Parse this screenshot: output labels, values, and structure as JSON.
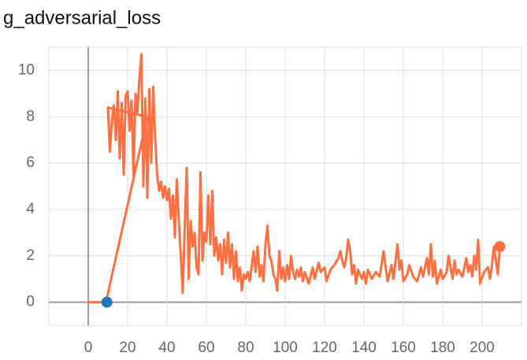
{
  "chart_data": {
    "type": "line",
    "title": "g_adversarial_loss",
    "xlim": [
      -20,
      220
    ],
    "xticks": [
      0,
      20,
      40,
      60,
      80,
      100,
      120,
      140,
      160,
      180,
      200
    ],
    "ylim": [
      -1,
      11
    ],
    "yticks": [
      0,
      2,
      4,
      6,
      8,
      10
    ],
    "grid": true,
    "series": [
      {
        "color": "#ff7043",
        "x": [
          0,
          9,
          30,
          10,
          11,
          12,
          13,
          14,
          15,
          16,
          17,
          18,
          19,
          20,
          21,
          22,
          23,
          24,
          25,
          26,
          27,
          28,
          29,
          30,
          31,
          32,
          33,
          34,
          35,
          36,
          37,
          38,
          39,
          40,
          41,
          42,
          43,
          44,
          45,
          46,
          47,
          48,
          49,
          50,
          51,
          52,
          53,
          54,
          55,
          56,
          57,
          58,
          59,
          60,
          61,
          62,
          63,
          64,
          65,
          66,
          67,
          68,
          69,
          70,
          71,
          72,
          73,
          74,
          75,
          76,
          77,
          78,
          79,
          80,
          81,
          82,
          84,
          85,
          86,
          87,
          88,
          89,
          90,
          91,
          92,
          93,
          94,
          95,
          96,
          97,
          98,
          99,
          100,
          101,
          102,
          103,
          104,
          105,
          106,
          107,
          108,
          109,
          110,
          112,
          114,
          115,
          117,
          118,
          120,
          121,
          123,
          125,
          127,
          128,
          129,
          130,
          131,
          132,
          133,
          134,
          135,
          136,
          137,
          139,
          140,
          141,
          142,
          144,
          146,
          148,
          150,
          151,
          152,
          154,
          155,
          157,
          158,
          159,
          160,
          162,
          163,
          165,
          167,
          169,
          170,
          172,
          173,
          174,
          175,
          176,
          177,
          179,
          180,
          182,
          183,
          184,
          185,
          186,
          187,
          188,
          190,
          192,
          193,
          194,
          195,
          196,
          197,
          198,
          199,
          201,
          203,
          204,
          205,
          206,
          207,
          208,
          209
        ],
        "values": [
          0,
          0,
          8,
          8.4,
          6.5,
          7.8,
          8.5,
          7.0,
          9.1,
          6.2,
          8.6,
          5.5,
          8.9,
          9.1,
          7.4,
          8.7,
          5.5,
          9.0,
          8.2,
          9.7,
          10.7,
          5.0,
          8.8,
          4.5,
          9.2,
          6.0,
          9.3,
          7.0,
          5.5,
          4.8,
          5.2,
          4.5,
          5.0,
          4.4,
          4.9,
          3.6,
          4.6,
          2.8,
          5.3,
          3.5,
          2.0,
          0.4,
          3.2,
          5.8,
          1.0,
          3.5,
          2.4,
          3.0,
          1.5,
          1.2,
          5.6,
          1.8,
          3.0,
          2.6,
          4.6,
          2.5,
          4.8,
          2.0,
          2.8,
          1.8,
          2.5,
          1.2,
          2.7,
          1.7,
          3.0,
          1.5,
          2.5,
          1.0,
          2.2,
          0.9,
          1.5,
          0.5,
          1.2,
          1.0,
          1.3,
          0.9,
          2.2,
          1.3,
          2.4,
          1.1,
          1.6,
          0.9,
          2.5,
          3.3,
          2.0,
          1.8,
          1.2,
          1.0,
          0.5,
          2.2,
          1.0,
          1.5,
          0.9,
          1.6,
          1.0,
          2.0,
          1.3,
          1.0,
          1.4,
          1.1,
          1.5,
          0.9,
          1.3,
          0.8,
          1.5,
          1.0,
          1.7,
          1.3,
          1.5,
          0.9,
          1.4,
          1.6,
          1.9,
          2.2,
          1.8,
          1.5,
          1.9,
          2.7,
          2.2,
          1.2,
          1.6,
          0.8,
          1.4,
          1.0,
          1.3,
          0.8,
          1.4,
          1.0,
          1.3,
          1.1,
          2.2,
          1.5,
          0.9,
          1.6,
          1.0,
          2.5,
          1.4,
          1.8,
          0.9,
          1.2,
          1.6,
          1.1,
          0.9,
          1.5,
          1.1,
          1.9,
          1.2,
          2.5,
          1.1,
          1.8,
          0.8,
          1.4,
          1.0,
          1.3,
          2.0,
          1.5,
          1.0,
          1.8,
          1.2,
          1.4,
          1.1,
          1.9,
          1.3,
          1.6,
          1.1,
          2.0,
          1.4,
          2.7,
          0.8,
          1.3,
          1.5,
          1.0,
          1.6,
          2.4,
          1.8,
          1.2,
          2.4
        ]
      },
      {
        "color": "#1f77b4",
        "x": [
          9.5
        ],
        "values": [
          0
        ]
      }
    ]
  }
}
